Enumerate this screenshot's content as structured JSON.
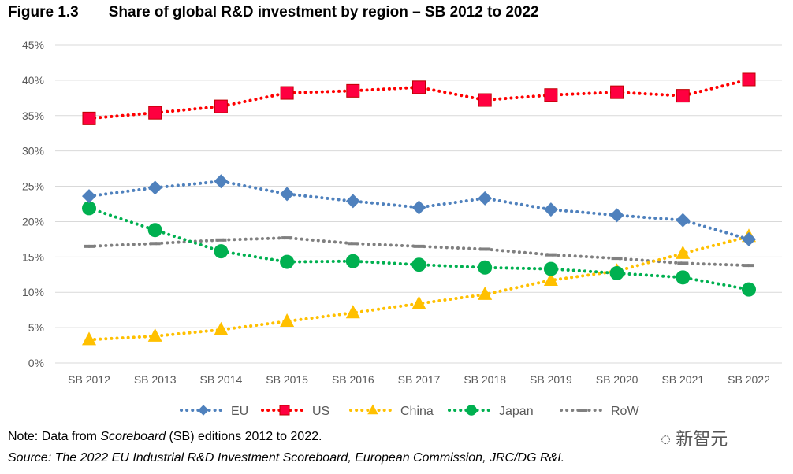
{
  "chart_data": {
    "type": "line",
    "title_number": "Figure 1.3",
    "title": "Share of global R&D investment by region – SB 2012 to 2022",
    "categories": [
      "SB 2012",
      "SB 2013",
      "SB 2014",
      "SB 2015",
      "SB 2016",
      "SB 2017",
      "SB 2018",
      "SB 2019",
      "SB 2020",
      "SB 2021",
      "SB 2022"
    ],
    "yticks": [
      "0%",
      "5%",
      "10%",
      "15%",
      "20%",
      "25%",
      "30%",
      "35%",
      "40%",
      "45%"
    ],
    "ylim": [
      0,
      45
    ],
    "grid": true,
    "legend_position": "bottom",
    "series": [
      {
        "name": "EU",
        "color": "#4f81bd",
        "marker": "diamond",
        "values": [
          23.6,
          24.8,
          25.7,
          23.9,
          22.9,
          22.0,
          23.3,
          21.7,
          20.9,
          20.2,
          17.5
        ]
      },
      {
        "name": "US",
        "color": "#ff0000",
        "marker": "square",
        "values": [
          34.6,
          35.4,
          36.3,
          38.2,
          38.5,
          39.0,
          37.2,
          37.9,
          38.3,
          37.8,
          40.1
        ]
      },
      {
        "name": "China",
        "color": "#ffc000",
        "marker": "triangle",
        "values": [
          3.3,
          3.8,
          4.7,
          5.9,
          7.1,
          8.4,
          9.7,
          11.7,
          13.0,
          15.5,
          17.9
        ]
      },
      {
        "name": "Japan",
        "color": "#00b050",
        "marker": "circle",
        "values": [
          21.9,
          18.8,
          15.8,
          14.3,
          14.4,
          13.9,
          13.5,
          13.3,
          12.7,
          12.1,
          10.4
        ]
      },
      {
        "name": "RoW",
        "color": "#808080",
        "marker": "dash",
        "values": [
          16.5,
          16.9,
          17.4,
          17.7,
          16.9,
          16.5,
          16.1,
          15.3,
          14.8,
          14.1,
          13.8
        ]
      }
    ]
  },
  "note_prefix": "Note: Data from ",
  "note_italic": "Scoreboard",
  "note_suffix": " (SB) editions 2012 to 2022.",
  "source": "Source: The 2022 EU Industrial R&D Investment Scoreboard, European Commission, JRC/DG R&I.",
  "watermark": "新智元"
}
